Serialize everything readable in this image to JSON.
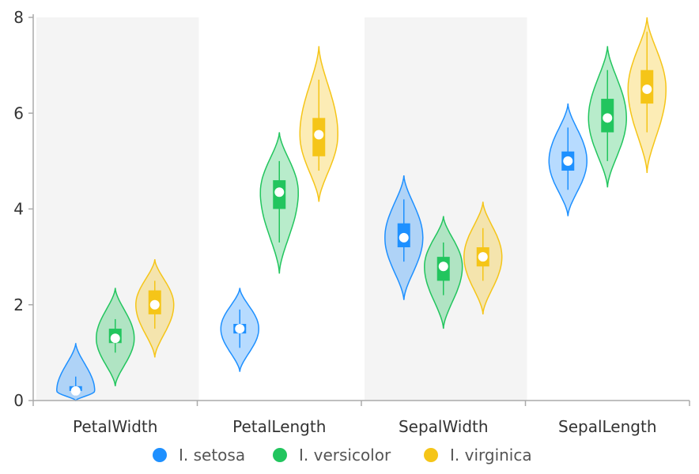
{
  "chart_data": {
    "type": "violin",
    "categories": [
      "PetalWidth",
      "PetalLength",
      "SepalWidth",
      "SepalLength"
    ],
    "ylim": [
      0,
      8
    ],
    "yticks": [
      0,
      2,
      4,
      6,
      8
    ],
    "legend_position": "bottom",
    "series": [
      {
        "name": "I. setosa",
        "color": "#1e90ff",
        "stats": [
          {
            "median": 0.2,
            "q1": 0.2,
            "q3": 0.3,
            "whisker_low": 0.1,
            "whisker_high": 0.5,
            "density_min": 0.0,
            "density_max": 1.2
          },
          {
            "median": 1.5,
            "q1": 1.4,
            "q3": 1.6,
            "whisker_low": 1.1,
            "whisker_high": 1.9,
            "density_min": 0.6,
            "density_max": 2.35
          },
          {
            "median": 3.4,
            "q1": 3.2,
            "q3": 3.7,
            "whisker_low": 2.9,
            "whisker_high": 4.2,
            "density_min": 2.1,
            "density_max": 4.7
          },
          {
            "median": 5.0,
            "q1": 4.8,
            "q3": 5.2,
            "whisker_low": 4.4,
            "whisker_high": 5.7,
            "density_min": 3.85,
            "density_max": 6.2
          }
        ]
      },
      {
        "name": "I. versicolor",
        "color": "#22c55e",
        "stats": [
          {
            "median": 1.3,
            "q1": 1.2,
            "q3": 1.5,
            "whisker_low": 1.0,
            "whisker_high": 1.7,
            "density_min": 0.3,
            "density_max": 2.35
          },
          {
            "median": 4.35,
            "q1": 4.0,
            "q3": 4.6,
            "whisker_low": 3.3,
            "whisker_high": 5.0,
            "density_min": 2.65,
            "density_max": 5.6
          },
          {
            "median": 2.8,
            "q1": 2.5,
            "q3": 3.0,
            "whisker_low": 2.2,
            "whisker_high": 3.3,
            "density_min": 1.5,
            "density_max": 3.85
          },
          {
            "median": 5.9,
            "q1": 5.6,
            "q3": 6.3,
            "whisker_low": 5.0,
            "whisker_high": 6.9,
            "density_min": 4.45,
            "density_max": 7.4
          }
        ]
      },
      {
        "name": "I. virginica",
        "color": "#f5c518",
        "stats": [
          {
            "median": 2.0,
            "q1": 1.8,
            "q3": 2.3,
            "whisker_low": 1.5,
            "whisker_high": 2.5,
            "density_min": 0.9,
            "density_max": 2.95
          },
          {
            "median": 5.55,
            "q1": 5.1,
            "q3": 5.9,
            "whisker_low": 4.8,
            "whisker_high": 6.7,
            "density_min": 4.15,
            "density_max": 7.4
          },
          {
            "median": 3.0,
            "q1": 2.8,
            "q3": 3.2,
            "whisker_low": 2.5,
            "whisker_high": 3.6,
            "density_min": 1.8,
            "density_max": 4.15
          },
          {
            "median": 6.5,
            "q1": 6.2,
            "q3": 6.9,
            "whisker_low": 5.6,
            "whisker_high": 7.7,
            "density_min": 4.75,
            "density_max": 8.0
          }
        ]
      }
    ]
  }
}
